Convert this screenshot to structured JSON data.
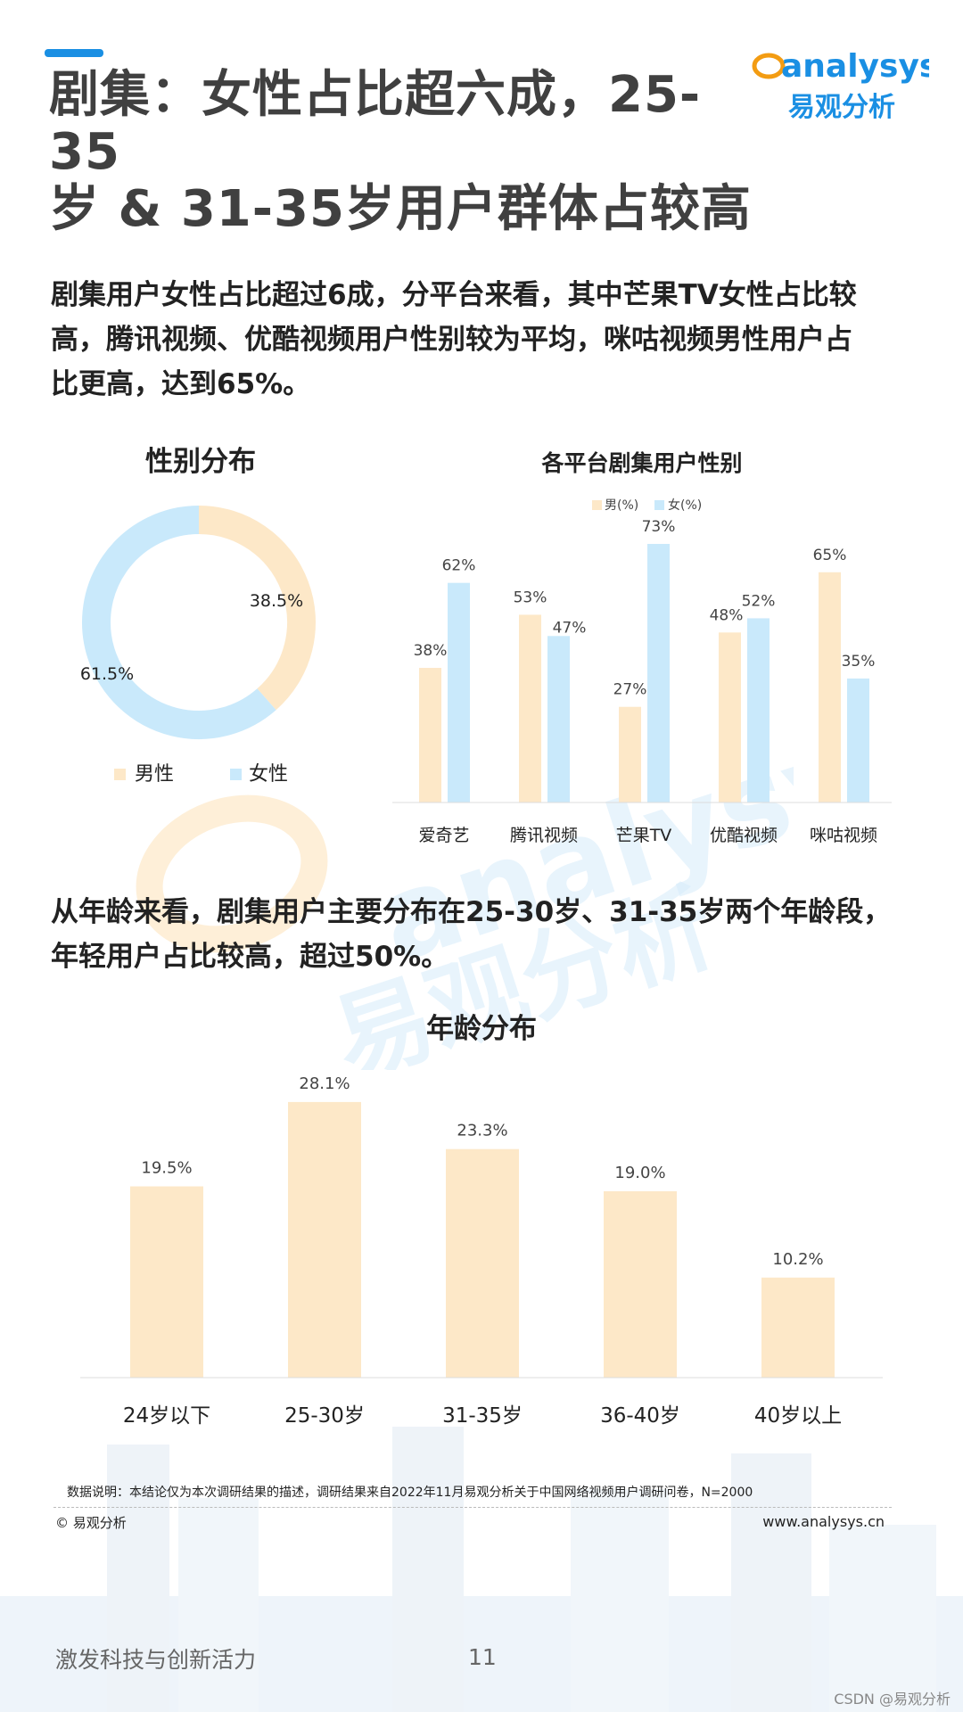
{
  "header": {
    "title_line1": "剧集：女性占比超六成，25-35",
    "title_line2": "岁 & 31-35岁用户群体占较高",
    "logo_text": "analysys",
    "logo_cn": "易观分析",
    "accent_color": "#1a8fe3"
  },
  "paragraph1": {
    "line1": "剧集用户女性占比超过6成，分平台来看，其中芒果TV女性占比较",
    "line2": "高，腾讯视频、优酷视频用户性别较为平均，咪咕视频男性用户占",
    "line3": "比更高，达到65%。"
  },
  "paragraph2": {
    "line1": "从年龄来看，剧集用户主要分布在25-30岁、31-35岁两个年龄段，",
    "line2": "年轻用户占比较高，超过50%。"
  },
  "colors": {
    "male": "#fde8c8",
    "female": "#c9e9fb"
  },
  "chart_data": [
    {
      "type": "pie",
      "title": "性别分布",
      "labels": [
        "男性",
        "女性"
      ],
      "values": [
        38.5,
        61.5
      ],
      "value_labels": [
        "38.5%",
        "61.5%"
      ],
      "legend": "bottom"
    },
    {
      "type": "bar",
      "title": "各平台剧集用户性别",
      "categories": [
        "爱奇艺",
        "腾讯视频",
        "芒果TV",
        "优酷视频",
        "咪咕视频"
      ],
      "series": [
        {
          "name": "男(%)",
          "values": [
            38,
            53,
            27,
            48,
            65
          ]
        },
        {
          "name": "女(%)",
          "values": [
            62,
            47,
            73,
            52,
            35
          ]
        }
      ],
      "legend": "top",
      "ylim": [
        0,
        80
      ]
    },
    {
      "type": "bar",
      "title": "年龄分布",
      "categories": [
        "24岁以下",
        "25-30岁",
        "31-35岁",
        "36-40岁",
        "40岁以上"
      ],
      "values": [
        19.5,
        28.1,
        23.3,
        19.0,
        10.2
      ],
      "value_labels": [
        "19.5%",
        "28.1%",
        "23.3%",
        "19.0%",
        "10.2%"
      ],
      "ylim": [
        0,
        30
      ]
    }
  ],
  "footer": {
    "note": "数据说明：本结论仅为本次调研结果的描述，调研结果来自2022年11月易观分析关于中国网络视频用户调研问卷，N=2000",
    "copyright": "© 易观分析",
    "website": "www.analysys.cn",
    "slogan": "激发科技与创新活力",
    "page_number": "11",
    "credit": "CSDN @易观分析"
  }
}
